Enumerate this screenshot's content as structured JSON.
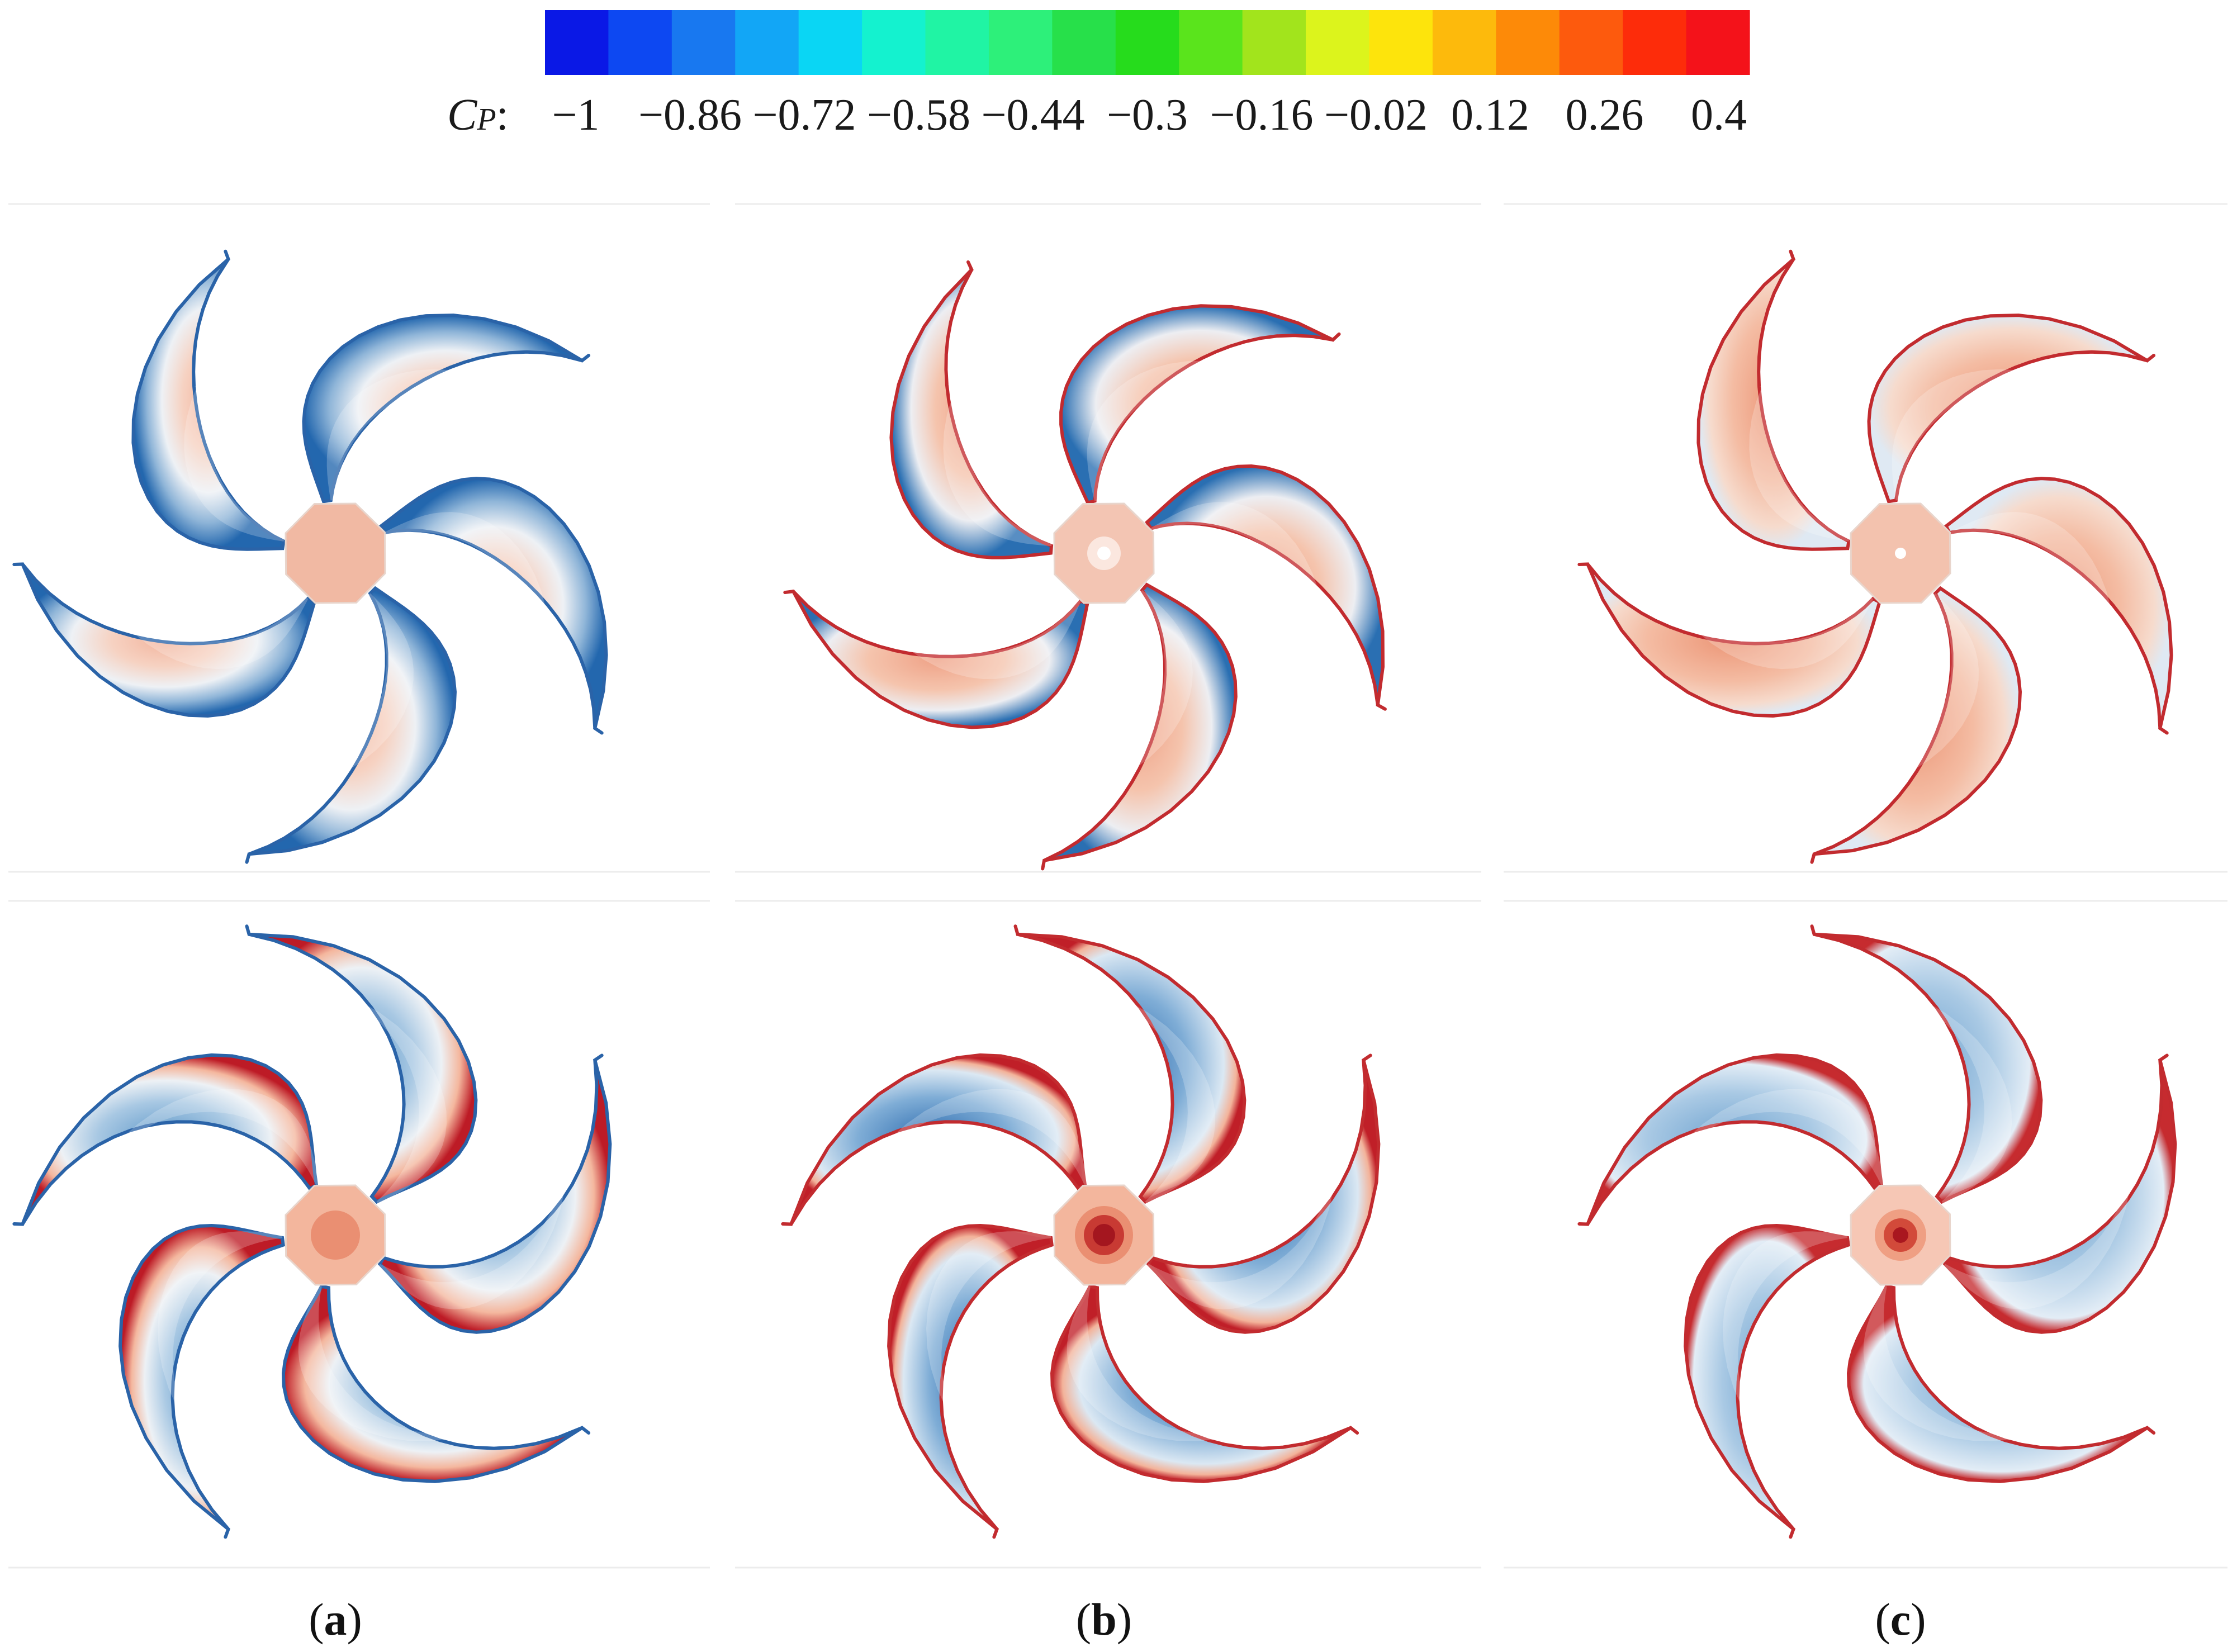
{
  "colorbar": {
    "symbol": "C",
    "subscript": "P",
    "colon": ":",
    "colors": [
      "#0a18e6",
      "#0d48f2",
      "#1878f0",
      "#12a6f6",
      "#0ad6f4",
      "#14f2cf",
      "#20f4a4",
      "#2df07a",
      "#27e04a",
      "#26dc1c",
      "#5ae41c",
      "#a2e41c",
      "#dcf41c",
      "#fde40c",
      "#fdba0c",
      "#fd8a08",
      "#fd5a0d",
      "#fd2c0a",
      "#f4121a"
    ],
    "ticks": [
      "−1",
      "−0.86",
      "−0.72",
      "−0.58",
      "−0.44",
      "−0.3",
      "−0.16",
      "−0.02",
      "0.12",
      "0.26",
      "0.4"
    ]
  },
  "panels": [
    {
      "label": "(a)",
      "letter": "a"
    },
    {
      "label": "(b)",
      "letter": "b"
    },
    {
      "label": "(c)",
      "letter": "c"
    }
  ]
}
